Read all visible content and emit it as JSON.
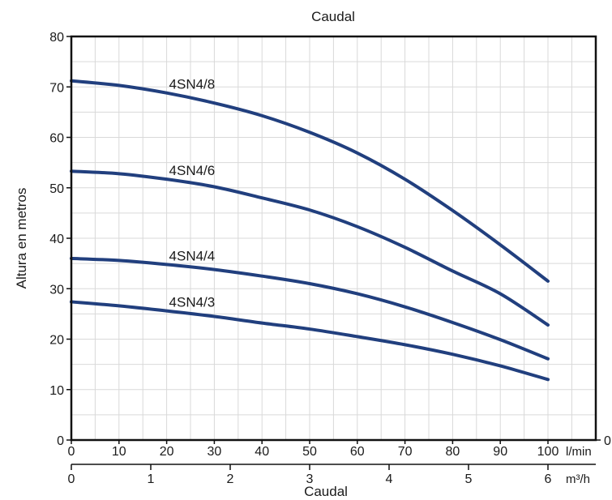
{
  "chart_data": {
    "type": "line",
    "title": "Caudal",
    "xlabel": "Caudal",
    "ylabel": "Altura en metros",
    "x_unit": "l/min",
    "x2_unit": "m³/h",
    "xlim": [
      0,
      110
    ],
    "ylim": [
      0,
      80
    ],
    "x_ticks": [
      "0",
      "10",
      "20",
      "30",
      "40",
      "50",
      "60",
      "70",
      "80",
      "90",
      "100"
    ],
    "x2_ticks": [
      "0",
      "1",
      "2",
      "3",
      "4",
      "5",
      "6"
    ],
    "y_ticks": [
      "0",
      "10",
      "20",
      "30",
      "40",
      "50",
      "60",
      "70",
      "80"
    ],
    "right_axis_label": "0",
    "grid": true,
    "line_color": "#213f7e",
    "series": [
      {
        "name": "4SN4/8",
        "x": [
          0,
          10,
          20,
          30,
          40,
          50,
          60,
          70,
          80,
          90,
          100
        ],
        "y": [
          71.2,
          70.3,
          68.8,
          66.8,
          64.3,
          61.0,
          56.9,
          51.7,
          45.5,
          38.7,
          31.5
        ]
      },
      {
        "name": "4SN4/6",
        "x": [
          0,
          10,
          20,
          30,
          40,
          50,
          60,
          70,
          80,
          90,
          100
        ],
        "y": [
          53.3,
          52.8,
          51.7,
          50.2,
          48.0,
          45.6,
          42.3,
          38.2,
          33.5,
          29.0,
          22.8
        ]
      },
      {
        "name": "4SN4/4",
        "x": [
          0,
          10,
          20,
          30,
          40,
          50,
          60,
          70,
          80,
          90,
          100
        ],
        "y": [
          36.0,
          35.6,
          34.8,
          33.8,
          32.5,
          31.0,
          29.0,
          26.4,
          23.3,
          19.9,
          16.1
        ]
      },
      {
        "name": "4SN4/3",
        "x": [
          0,
          10,
          20,
          30,
          40,
          50,
          60,
          70,
          80,
          90,
          100
        ],
        "y": [
          27.4,
          26.6,
          25.6,
          24.5,
          23.2,
          22.0,
          20.5,
          18.9,
          17.0,
          14.7,
          12.0
        ]
      }
    ]
  }
}
